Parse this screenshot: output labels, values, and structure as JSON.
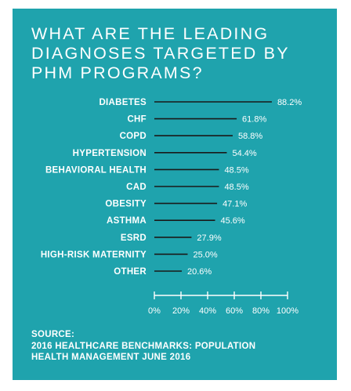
{
  "title": "WHAT ARE THE LEADING DIAGNOSES TARGETED BY PHM PROGRAMS?",
  "source": {
    "label": "SOURCE:",
    "line1": "2016 HEALTHCARE BENCHMARKS: POPULATION",
    "line2": "HEALTH MANAGEMENT JUNE 2016"
  },
  "colors": {
    "background": "#1fa3ad",
    "text": "#ffffff",
    "bar": "#1a1a1a"
  },
  "chart_data": {
    "type": "bar",
    "orientation": "horizontal",
    "categories": [
      "DIABETES",
      "CHF",
      "COPD",
      "HYPERTENSION",
      "BEHAVIORAL HEALTH",
      "CAD",
      "OBESITY",
      "ASTHMA",
      "ESRD",
      "HIGH-RISK MATERNITY",
      "OTHER"
    ],
    "values": [
      88.2,
      61.8,
      58.8,
      54.4,
      48.5,
      48.5,
      47.1,
      45.6,
      27.9,
      25.0,
      20.6
    ],
    "value_labels": [
      "88.2%",
      "61.8%",
      "58.8%",
      "54.4%",
      "48.5%",
      "48.5%",
      "47.1%",
      "45.6%",
      "27.9%",
      "25.0%",
      "20.6%"
    ],
    "xlim": [
      0,
      100
    ],
    "ticks": [
      0,
      20,
      40,
      60,
      80,
      100
    ],
    "tick_labels": [
      "0%",
      "20%",
      "40%",
      "60%",
      "80%",
      "100%"
    ],
    "grid": false,
    "legend": "none"
  }
}
